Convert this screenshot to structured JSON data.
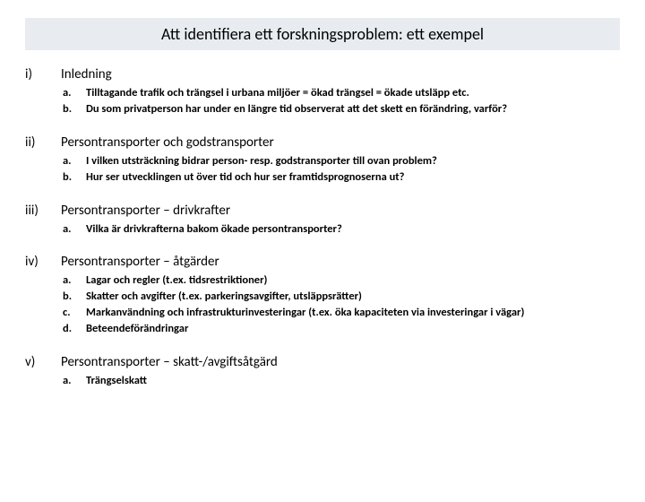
{
  "title": "Att identifiera ett forskningsproblem: ett exempel",
  "sections": [
    {
      "marker": "i)",
      "title": "Inledning",
      "items": [
        {
          "marker": "a.",
          "text": "Tilltagande trafik och trängsel i urbana miljöer = ökad trängsel = ökade utsläpp etc."
        },
        {
          "marker": "b.",
          "text": "Du som privatperson har under en längre tid observerat att det skett en förändring, varför?"
        }
      ]
    },
    {
      "marker": "ii)",
      "title": "Persontransporter och godstransporter",
      "items": [
        {
          "marker": "a.",
          "text": "I vilken utsträckning bidrar person- resp. godstransporter till ovan problem?"
        },
        {
          "marker": "b.",
          "text": "Hur ser utvecklingen ut över tid och hur ser framtidsprognoserna ut?"
        }
      ]
    },
    {
      "marker": "iii)",
      "title": "Persontransporter – drivkrafter",
      "items": [
        {
          "marker": "a.",
          "text": "Vilka är drivkrafterna bakom ökade persontransporter?"
        }
      ]
    },
    {
      "marker": "iv)",
      "title": "Persontransporter – åtgärder",
      "items": [
        {
          "marker": "a.",
          "text": "Lagar och regler (t.ex. tidsrestriktioner)"
        },
        {
          "marker": "b.",
          "text": "Skatter och avgifter (t.ex. parkeringsavgifter, utsläppsrätter)"
        },
        {
          "marker": "c.",
          "text": "Markanvändning och infrastrukturinvesteringar (t.ex. öka kapaciteten via investeringar i vägar)"
        },
        {
          "marker": "d.",
          "text": "Beteendeförändringar"
        }
      ]
    },
    {
      "marker": "v)",
      "title": "Persontransporter – skatt-/avgiftsåtgärd",
      "items": [
        {
          "marker": "a.",
          "text": "Trängselskatt"
        }
      ]
    }
  ]
}
